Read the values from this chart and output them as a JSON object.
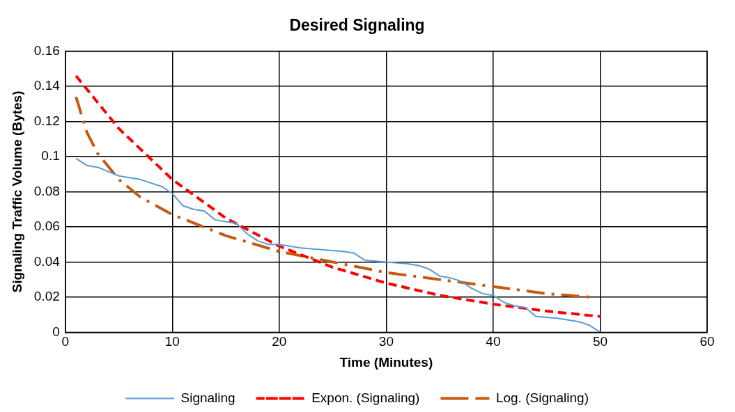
{
  "chart_data": {
    "type": "line",
    "title": "Desired Signaling",
    "xlabel": "Time (Minutes)",
    "ylabel": "Signaling Traffic Volume (Bytes)",
    "xlim": [
      0,
      60
    ],
    "xticks": [
      0,
      10,
      20,
      30,
      40,
      50,
      60
    ],
    "ylim": [
      0,
      0.16
    ],
    "yticks": [
      0,
      0.02,
      0.04,
      0.06,
      0.08,
      0.1,
      0.12,
      0.14,
      0.16
    ],
    "grid": true,
    "legend": "bottom",
    "marker": "none",
    "series": [
      {
        "name": "Signaling",
        "color": "#5b9bd5",
        "line_style": "solid",
        "x": [
          1,
          2,
          3,
          5,
          7,
          9,
          10,
          11,
          12,
          13,
          14,
          15,
          16,
          17,
          18,
          19,
          20,
          22,
          24,
          26,
          27,
          28,
          30,
          32,
          33,
          34,
          35,
          36,
          37,
          38,
          39,
          40,
          41,
          42,
          43,
          44,
          46,
          48,
          49,
          50
        ],
        "values": [
          0.099,
          0.095,
          0.094,
          0.089,
          0.087,
          0.083,
          0.079,
          0.072,
          0.07,
          0.069,
          0.064,
          0.063,
          0.062,
          0.056,
          0.052,
          0.05,
          0.05,
          0.048,
          0.047,
          0.046,
          0.045,
          0.041,
          0.04,
          0.039,
          0.038,
          0.036,
          0.032,
          0.031,
          0.029,
          0.025,
          0.022,
          0.021,
          0.017,
          0.015,
          0.014,
          0.009,
          0.008,
          0.006,
          0.004,
          0
        ]
      },
      {
        "name": "Expon. (Signaling)",
        "color": "#ff0000",
        "line_style": "dashed",
        "x": [
          1,
          5,
          10,
          15,
          20,
          25,
          30,
          35,
          40,
          45,
          50
        ],
        "values": [
          0.146,
          0.116,
          0.087,
          0.065,
          0.049,
          0.037,
          0.028,
          0.021,
          0.016,
          0.012,
          0.009
        ]
      },
      {
        "name": "Log. (Signaling)",
        "color": "#c55a11",
        "line_style": "dashdot",
        "x": [
          1,
          2,
          3,
          5,
          7,
          10,
          15,
          20,
          25,
          30,
          35,
          40,
          45,
          49
        ],
        "values": [
          0.134,
          0.114,
          0.102,
          0.087,
          0.077,
          0.067,
          0.055,
          0.046,
          0.04,
          0.034,
          0.03,
          0.026,
          0.022,
          0.02
        ]
      }
    ]
  }
}
